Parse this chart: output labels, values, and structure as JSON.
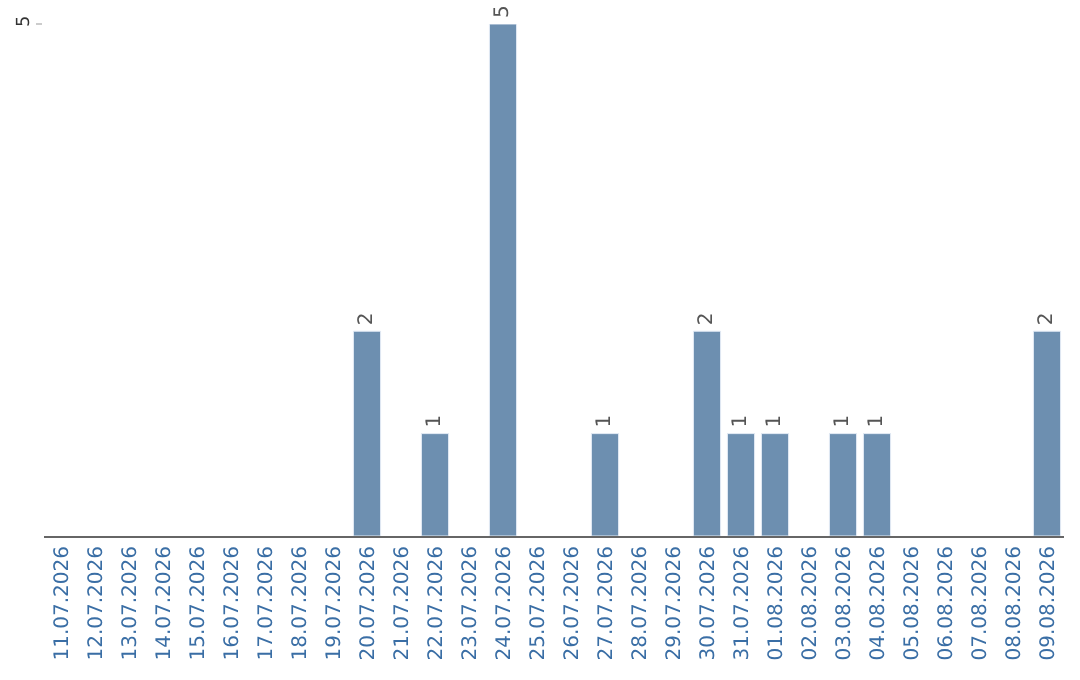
{
  "chart_data": {
    "type": "bar",
    "categories": [
      "11.07.2026",
      "12.07.2026",
      "13.07.2026",
      "14.07.2026",
      "15.07.2026",
      "16.07.2026",
      "17.07.2026",
      "18.07.2026",
      "19.07.2026",
      "20.07.2026",
      "21.07.2026",
      "22.07.2026",
      "23.07.2026",
      "24.07.2026",
      "25.07.2026",
      "26.07.2026",
      "27.07.2026",
      "28.07.2026",
      "29.07.2026",
      "30.07.2026",
      "31.07.2026",
      "01.08.2026",
      "02.08.2026",
      "03.08.2026",
      "04.08.2026",
      "05.08.2026",
      "06.08.2026",
      "07.08.2026",
      "08.08.2026",
      "09.08.2026"
    ],
    "values": [
      null,
      null,
      null,
      null,
      null,
      null,
      null,
      null,
      null,
      2,
      null,
      1,
      null,
      5,
      null,
      null,
      1,
      null,
      null,
      2,
      1,
      1,
      null,
      1,
      1,
      null,
      null,
      null,
      null,
      2
    ],
    "value_labels": [
      null,
      null,
      null,
      null,
      null,
      null,
      null,
      null,
      null,
      "2",
      null,
      "1",
      null,
      "5",
      null,
      null,
      "1",
      null,
      null,
      "2",
      "1",
      "1",
      null,
      "1",
      "1",
      null,
      null,
      null,
      null,
      "2"
    ],
    "color": "#6d8fb0",
    "ylim": [
      0,
      5
    ],
    "yticks": [
      5
    ],
    "legend": false
  }
}
